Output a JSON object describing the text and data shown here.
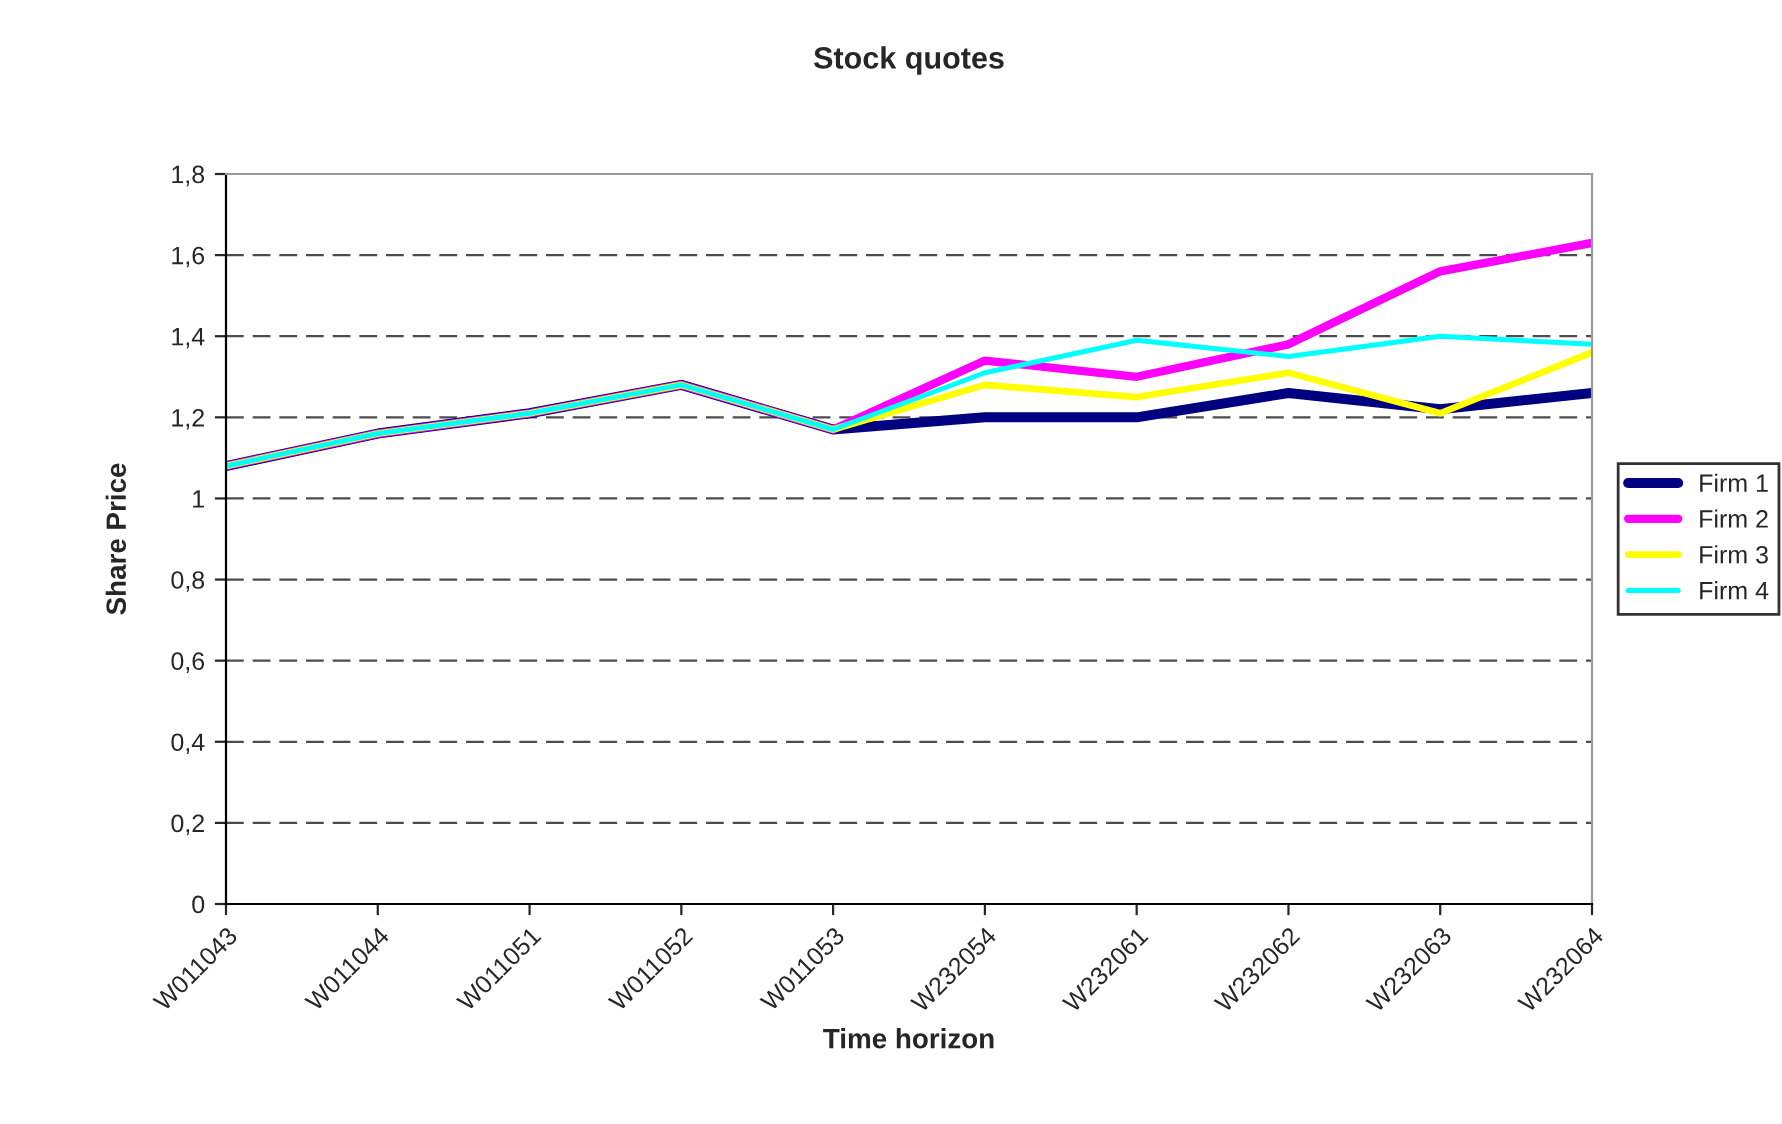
{
  "chart_data": {
    "type": "line",
    "title": "Stock quotes",
    "xlabel": "Time horizon",
    "ylabel": "Share Price",
    "categories": [
      "W011043",
      "W011044",
      "W011051",
      "W011052",
      "W011053",
      "W232054",
      "W232061",
      "W232062",
      "W232063",
      "W232064"
    ],
    "series": [
      {
        "name": "Firm 1",
        "color": "#000080",
        "values": [
          1.08,
          1.16,
          1.21,
          1.28,
          1.17,
          1.2,
          1.2,
          1.26,
          1.22,
          1.26
        ]
      },
      {
        "name": "Firm 2",
        "color": "#ff00ff",
        "values": [
          1.08,
          1.16,
          1.21,
          1.28,
          1.17,
          1.34,
          1.3,
          1.38,
          1.56,
          1.63
        ]
      },
      {
        "name": "Firm 3",
        "color": "#ffff00",
        "values": [
          1.08,
          1.16,
          1.21,
          1.28,
          1.17,
          1.28,
          1.25,
          1.31,
          1.21,
          1.36
        ]
      },
      {
        "name": "Firm 4",
        "color": "#00ffff",
        "values": [
          1.08,
          1.16,
          1.21,
          1.28,
          1.17,
          1.31,
          1.39,
          1.35,
          1.4,
          1.38
        ]
      }
    ],
    "ylim": [
      0,
      1.8
    ],
    "yticks": [
      0,
      {
        "value": 0.2,
        "label": "0,2"
      },
      {
        "value": 0.4,
        "label": "0,4"
      },
      {
        "value": 0.6,
        "label": "0,6"
      },
      {
        "value": 0.8,
        "label": "0,8"
      },
      1,
      {
        "value": 1.2,
        "label": "1,2"
      },
      {
        "value": 1.4,
        "label": "1,4"
      },
      {
        "value": 1.6,
        "label": "1,6"
      },
      {
        "value": 1.8,
        "label": "1,8"
      }
    ],
    "grid": "y",
    "legend": "right",
    "marker": "none",
    "line_style": "solid"
  }
}
